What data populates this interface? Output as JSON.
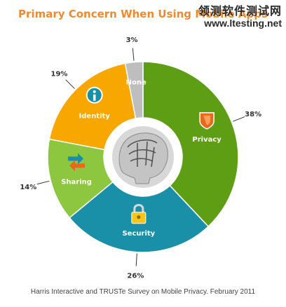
{
  "title": "Primary Concern When Using Mobile Apps",
  "watermark": {
    "line1": "领测软件测试网",
    "line2": "www.ltesting.net"
  },
  "source": "Harris Interactive and TRUSTe Survey on Mobile Privacy. February 2011",
  "chart_data": {
    "type": "pie",
    "title": "Primary Concern When Using Mobile Apps",
    "donut": true,
    "slices": [
      {
        "label": "Privacy",
        "value": 38,
        "pct_text": "38%",
        "color": "#5E9E14",
        "icon": "shield-icon"
      },
      {
        "label": "Security",
        "value": 26,
        "pct_text": "26%",
        "color": "#1A8FA8",
        "icon": "padlock-icon"
      },
      {
        "label": "Sharing",
        "value": 14,
        "pct_text": "14%",
        "color": "#8DC63F",
        "icon": "arrows-exchange-icon"
      },
      {
        "label": "Identity",
        "value": 19,
        "pct_text": "19%",
        "color": "#F7A700",
        "icon": "info-icon"
      },
      {
        "label": "None",
        "value": 3,
        "pct_text": "3%",
        "color": "#BEBEBE",
        "icon": ""
      }
    ],
    "center_image": "brain-head-icon"
  }
}
